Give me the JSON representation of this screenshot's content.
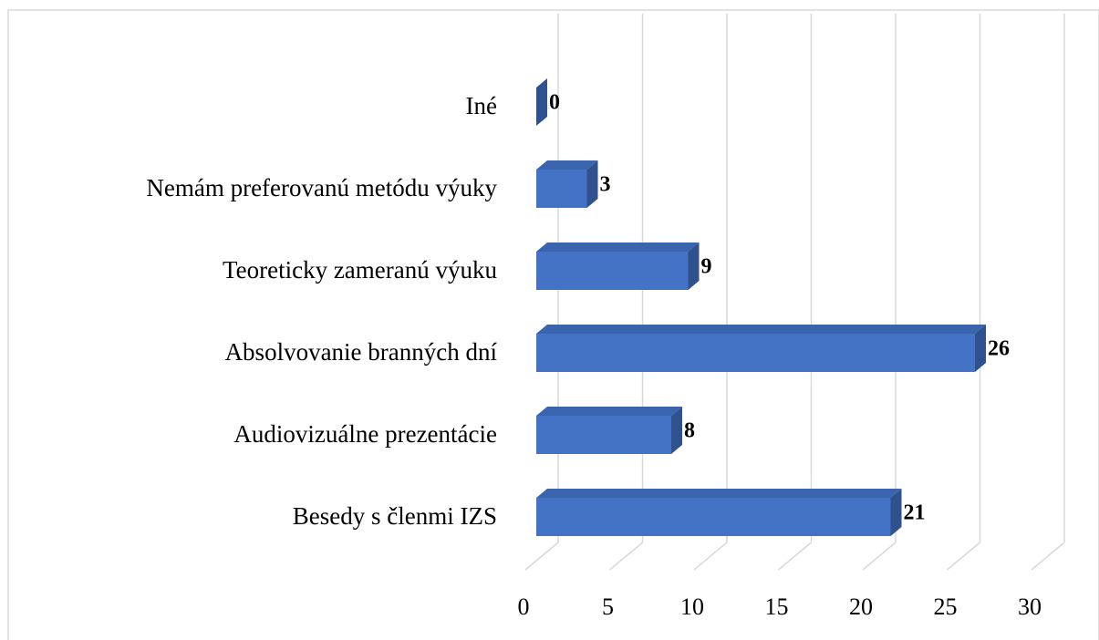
{
  "chart_data": {
    "type": "bar",
    "orientation": "horizontal",
    "categories": [
      "Besedy s členmi IZS",
      "Audiovizuálne prezentácie",
      "Absolvovanie branných dní",
      "Teoreticky zameranú výuku",
      "Nemám preferovanú metódu výuky",
      "Iné"
    ],
    "values": [
      21,
      8,
      26,
      9,
      3,
      0
    ],
    "color": "#4472c4",
    "xlim": [
      0,
      30
    ],
    "xticks": [
      0,
      5,
      10,
      15,
      20,
      25,
      30
    ],
    "grid": true
  }
}
